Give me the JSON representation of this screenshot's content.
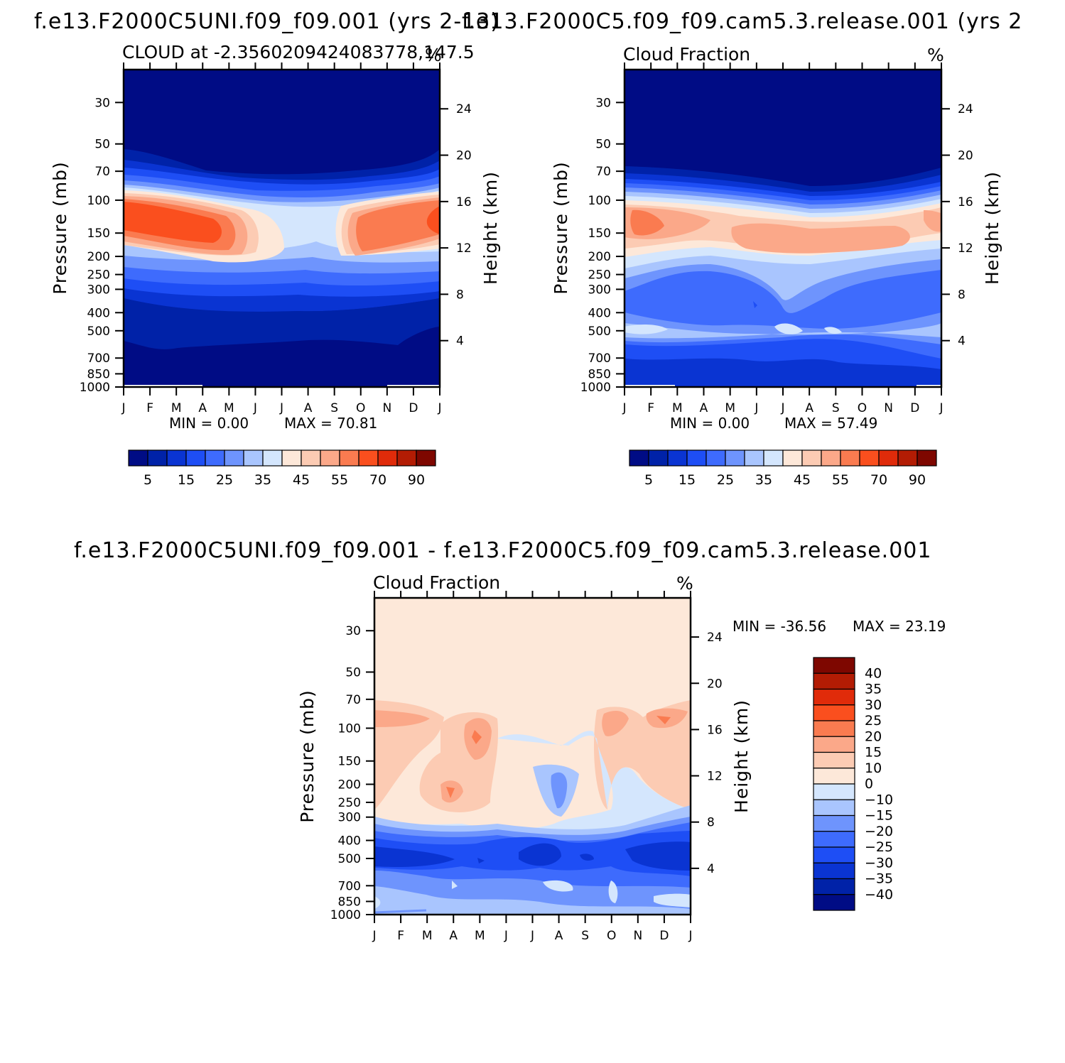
{
  "chart_data": [
    {
      "type": "heatmap",
      "title": "f.e13.F2000C5UNI.f09_f09.001  (yrs 2-13)",
      "subtitle_left": "CLOUD at -2.3560209424083778,147.5",
      "subtitle_right": "%",
      "ylabel": "Pressure (mb)",
      "ylabel_right": "Height (km)",
      "x_tick_labels": [
        "J",
        "F",
        "M",
        "A",
        "M",
        "J",
        "J",
        "A",
        "S",
        "O",
        "N",
        "D",
        "J"
      ],
      "y_ticks": [
        30,
        50,
        70,
        100,
        150,
        200,
        250,
        300,
        400,
        500,
        700,
        850,
        1000
      ],
      "y_right_ticks": [
        24,
        20,
        16,
        12,
        8,
        4
      ],
      "ylim": [
        1000,
        20
      ],
      "levels": [
        5,
        10,
        15,
        20,
        25,
        30,
        35,
        40,
        45,
        50,
        55,
        60,
        70,
        80,
        90
      ],
      "levels_labeled": [
        "5",
        "15",
        "25",
        "35",
        "45",
        "55",
        "70",
        "90"
      ],
      "min_text": "MIN =   0.00",
      "max_text": "MAX =   70.81",
      "palette": "blue-red"
    },
    {
      "type": "heatmap",
      "title": "f.e13.F2000C5.f09_f09.cam5.3.release.001  (yrs 2",
      "subtitle_left": "Cloud Fraction",
      "subtitle_right": "%",
      "ylabel": "Pressure (mb)",
      "ylabel_right": "Height (km)",
      "x_tick_labels": [
        "J",
        "F",
        "M",
        "A",
        "M",
        "J",
        "J",
        "A",
        "S",
        "O",
        "N",
        "D",
        "J"
      ],
      "y_ticks": [
        30,
        50,
        70,
        100,
        150,
        200,
        250,
        300,
        400,
        500,
        700,
        850,
        1000
      ],
      "y_right_ticks": [
        24,
        20,
        16,
        12,
        8,
        4
      ],
      "ylim": [
        1000,
        20
      ],
      "levels": [
        5,
        10,
        15,
        20,
        25,
        30,
        35,
        40,
        45,
        50,
        55,
        60,
        70,
        80,
        90
      ],
      "levels_labeled": [
        "5",
        "15",
        "25",
        "35",
        "45",
        "55",
        "70",
        "90"
      ],
      "min_text": "MIN =   0.00",
      "max_text": "MAX =   57.49",
      "palette": "blue-red"
    },
    {
      "type": "heatmap",
      "title": "f.e13.F2000C5UNI.f09_f09.001 - f.e13.F2000C5.f09_f09.cam5.3.release.001",
      "subtitle_left": "Cloud Fraction",
      "subtitle_right": "%",
      "ylabel": "Pressure (mb)",
      "ylabel_right": "Height (km)",
      "x_tick_labels": [
        "J",
        "F",
        "M",
        "A",
        "M",
        "J",
        "J",
        "A",
        "S",
        "O",
        "N",
        "D",
        "J"
      ],
      "y_ticks": [
        30,
        50,
        70,
        100,
        150,
        200,
        250,
        300,
        400,
        500,
        700,
        850,
        1000
      ],
      "y_right_ticks": [
        24,
        20,
        16,
        12,
        8,
        4
      ],
      "ylim": [
        1000,
        20
      ],
      "levels": [
        -40,
        -35,
        -30,
        -25,
        -20,
        -15,
        -10,
        0,
        10,
        15,
        20,
        25,
        30,
        35,
        40
      ],
      "levels_labeled": [
        "40",
        "35",
        "30",
        "25",
        "20",
        "15",
        "10",
        "0",
        "-10",
        "-15",
        "-20",
        "-25",
        "-30",
        "-35",
        "-40"
      ],
      "min_text": "MIN = -36.56",
      "max_text": "MAX =   23.19",
      "palette": "blue-red-diff"
    }
  ],
  "palettes": {
    "blue-red": [
      "#000c85",
      "#0022a8",
      "#0a34d2",
      "#1e4ef5",
      "#3e6bfd",
      "#6e94fd",
      "#a9c5fe",
      "#d4e6fd",
      "#fde8d9",
      "#fccbb3",
      "#fba889",
      "#fa7b50",
      "#fa4f1e",
      "#e02b0a",
      "#b31c04",
      "#7e0700"
    ],
    "blue-red-diff": [
      "#000c85",
      "#0022a8",
      "#0a34d2",
      "#1e4ef5",
      "#3e6bfd",
      "#6e94fd",
      "#a9c5fe",
      "#d4e6fd",
      "#fde8d9",
      "#fccbb3",
      "#fba889",
      "#fa7b50",
      "#fa4f1e",
      "#e02b0a",
      "#b31c04",
      "#7e0700"
    ]
  }
}
